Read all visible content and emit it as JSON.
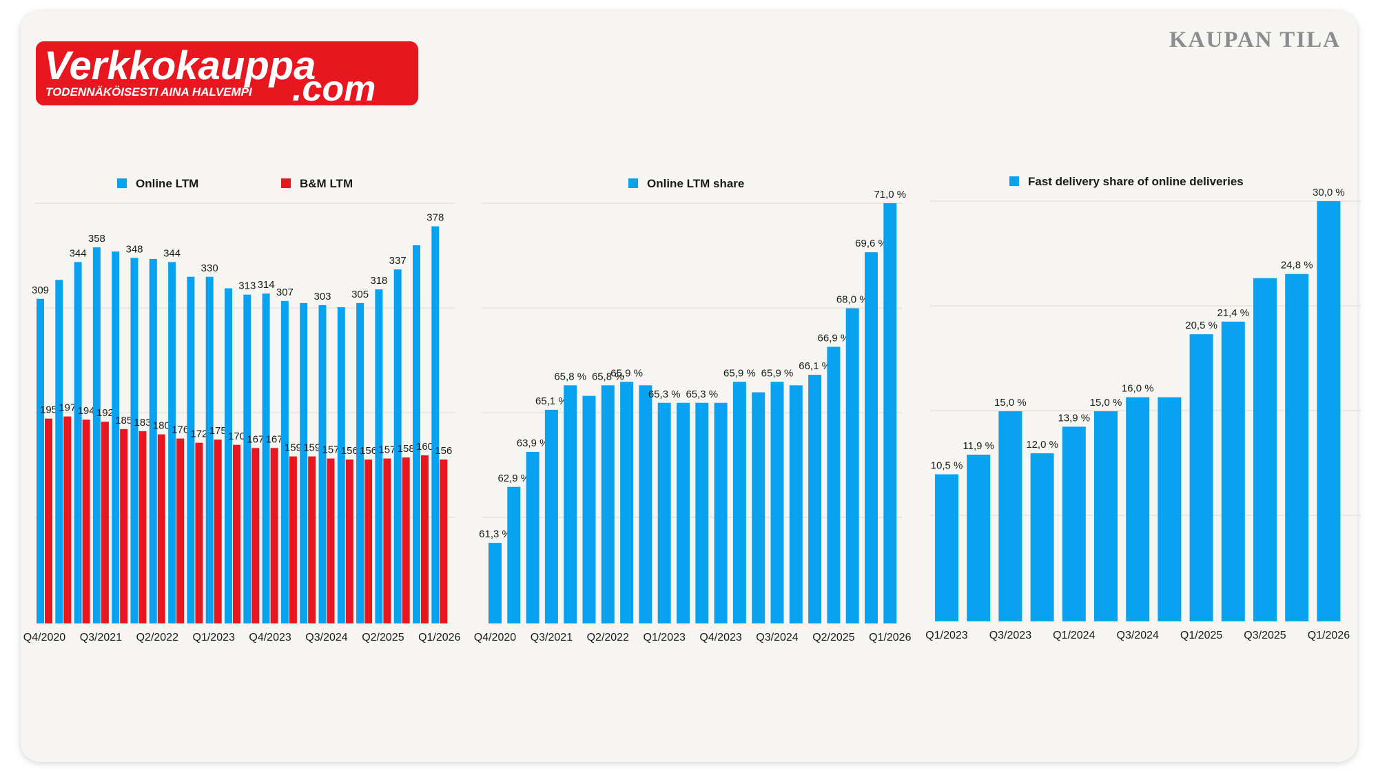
{
  "page_title": "KAUPAN TILA",
  "logo": {
    "brand": "Verkkokauppa",
    "domain": ".com",
    "slogan": "TODENNÄKÖISESTI AINA HALVEMPI"
  },
  "colors": {
    "blue": "#09a2f0",
    "red": "#e8171f",
    "background": "#f6f5f1",
    "text": "#1a1a1a",
    "grid": "#dcdcdc"
  },
  "chart_data": [
    {
      "type": "bar",
      "title": "",
      "legend": [
        "Online LTM",
        "B&M LTM"
      ],
      "legend_position": "top",
      "categories": [
        "Q4/2020",
        "Q1/2021",
        "Q2/2021",
        "Q3/2021",
        "Q4/2021",
        "Q1/2022",
        "Q2/2022",
        "Q3/2022",
        "Q4/2022",
        "Q1/2023",
        "Q2/2023",
        "Q3/2023",
        "Q4/2023",
        "Q1/2024",
        "Q2/2024",
        "Q3/2024",
        "Q4/2024",
        "Q1/2025",
        "Q2/2025",
        "Q3/2025",
        "Q4/2025",
        "Q1/2026"
      ],
      "tick_labels": [
        "Q4/2020",
        "Q3/2021",
        "Q2/2022",
        "Q1/2023",
        "Q4/2023",
        "Q3/2024",
        "Q2/2025",
        "Q1/2026"
      ],
      "series": [
        {
          "name": "Online LTM",
          "values": [
            309,
            327,
            344,
            358,
            354,
            348,
            347,
            344,
            330,
            330,
            319,
            313,
            314,
            307,
            305,
            303,
            301,
            305,
            318,
            337,
            360,
            378
          ]
        },
        {
          "name": "B&M LTM",
          "values": [
            195,
            197,
            194,
            192,
            185,
            183,
            180,
            176,
            172,
            175,
            170,
            167,
            167,
            159,
            159,
            157,
            156,
            156,
            157,
            158,
            160,
            156
          ]
        }
      ],
      "data_labels": {
        "Online LTM": [
          "309",
          "",
          "344",
          "358",
          "",
          "348",
          "",
          "344",
          "",
          "330",
          "",
          "313",
          "314",
          "307",
          "",
          "303",
          "",
          "305",
          "318",
          "337",
          "",
          "378"
        ],
        "B&M LTM": [
          "195",
          "197",
          "194",
          "192",
          "185",
          "183",
          "180",
          "176",
          "172",
          "175",
          "170",
          "167",
          "167",
          "159",
          "159",
          "157",
          "156",
          "156",
          "157",
          "158",
          "160",
          "156"
        ]
      },
      "ylim": [
        0,
        400
      ],
      "grid": true
    },
    {
      "type": "bar",
      "title": "",
      "legend": [
        "Online LTM share"
      ],
      "legend_position": "top",
      "categories": [
        "Q4/2020",
        "Q1/2021",
        "Q2/2021",
        "Q3/2021",
        "Q4/2021",
        "Q1/2022",
        "Q2/2022",
        "Q3/2022",
        "Q4/2022",
        "Q1/2023",
        "Q2/2023",
        "Q3/2023",
        "Q4/2023",
        "Q1/2024",
        "Q2/2024",
        "Q3/2024",
        "Q4/2024",
        "Q1/2025",
        "Q2/2025",
        "Q3/2025",
        "Q4/2025",
        "Q1/2026"
      ],
      "tick_labels": [
        "Q4/2020",
        "Q3/2021",
        "Q2/2022",
        "Q1/2023",
        "Q4/2023",
        "Q3/2024",
        "Q2/2025",
        "Q1/2026"
      ],
      "series": [
        {
          "name": "Online LTM share",
          "values": [
            61.3,
            62.9,
            63.9,
            65.1,
            65.8,
            65.5,
            65.8,
            65.9,
            65.8,
            65.3,
            65.3,
            65.3,
            65.3,
            65.9,
            65.6,
            65.9,
            65.8,
            66.1,
            66.9,
            68.0,
            69.6,
            71.0
          ]
        }
      ],
      "data_labels": {
        "Online LTM share": [
          "61,3 %",
          "62,9 %",
          "63,9 %",
          "65,1 %",
          "65,8 %",
          "",
          "65,8 %",
          "65,9 %",
          "",
          "65,3 %",
          "",
          "65,3 %",
          "",
          "65,9 %",
          "",
          "65,9 %",
          "",
          "66,1 %",
          "66,9 %",
          "68,0 %",
          "69,6 %",
          "71,0 %"
        ]
      },
      "ylim": [
        59,
        71
      ],
      "grid": true
    },
    {
      "type": "bar",
      "title": "",
      "legend": [
        "Fast delivery share of online deliveries"
      ],
      "legend_position": "top",
      "categories": [
        "Q1/2023",
        "Q2/2023",
        "Q3/2023",
        "Q4/2023",
        "Q1/2024",
        "Q2/2024",
        "Q3/2024",
        "Q4/2024",
        "Q1/2025",
        "Q2/2025",
        "Q3/2025",
        "Q4/2025",
        "Q1/2026"
      ],
      "tick_labels": [
        "Q1/2023",
        "Q3/2023",
        "Q1/2024",
        "Q3/2024",
        "Q1/2025",
        "Q3/2025",
        "Q1/2026"
      ],
      "series": [
        {
          "name": "Fast delivery share of online deliveries",
          "values": [
            10.5,
            11.9,
            15.0,
            12.0,
            13.9,
            15.0,
            16.0,
            16.0,
            20.5,
            21.4,
            24.5,
            24.8,
            30.0
          ]
        }
      ],
      "data_labels": {
        "Fast delivery share of online deliveries": [
          "10,5 %",
          "11,9 %",
          "15,0 %",
          "12,0 %",
          "13,9 %",
          "15,0 %",
          "16,0 %",
          "",
          "20,5 %",
          "21,4 %",
          "",
          "24,8 %",
          "30,0 %"
        ]
      },
      "ylim": [
        0,
        30
      ],
      "grid": true
    }
  ]
}
